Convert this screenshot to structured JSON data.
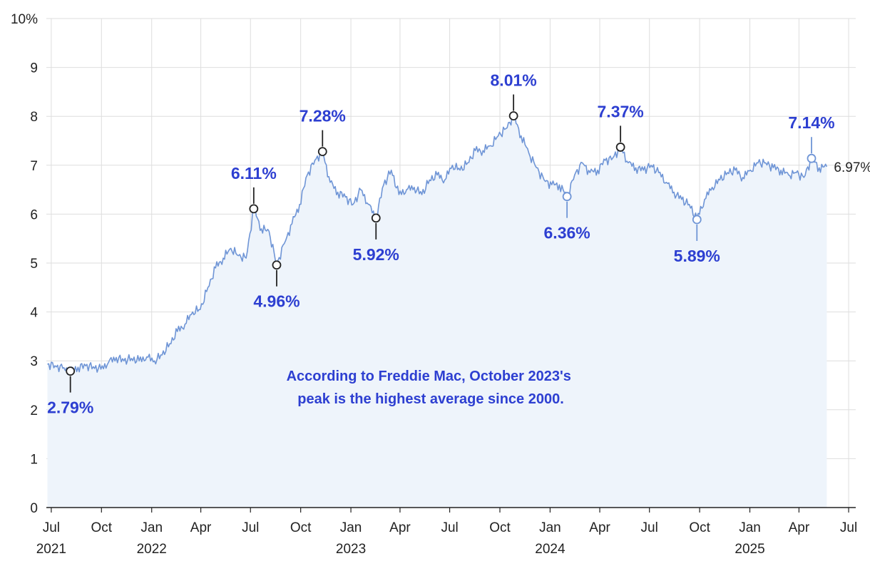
{
  "chart_data": {
    "type": "area",
    "title": "",
    "xlabel": "",
    "ylabel": "",
    "y_unit_suffix": "%",
    "ylim": [
      0,
      10
    ],
    "yticks": [
      0,
      1,
      2,
      3,
      4,
      5,
      6,
      7,
      8,
      9,
      10
    ],
    "ytick_labels": [
      "0",
      "1",
      "2",
      "3",
      "4",
      "5",
      "6",
      "7",
      "8",
      "9",
      "10%"
    ],
    "xlim": [
      "2021-06-22",
      "2025-07-14"
    ],
    "grid": true,
    "colors": {
      "line": "#6f95d6",
      "fill": "#eef4fb",
      "annotation_text": "#2d3fd1",
      "annotation_marker": "#222222"
    },
    "x_ticks": [
      {
        "date": "2021-07-01",
        "month": "Jul",
        "year": "2021"
      },
      {
        "date": "2021-10-01",
        "month": "Oct",
        "year": ""
      },
      {
        "date": "2022-01-01",
        "month": "Jan",
        "year": "2022"
      },
      {
        "date": "2022-04-01",
        "month": "Apr",
        "year": ""
      },
      {
        "date": "2022-07-01",
        "month": "Jul",
        "year": ""
      },
      {
        "date": "2022-10-01",
        "month": "Oct",
        "year": ""
      },
      {
        "date": "2023-01-01",
        "month": "Jan",
        "year": "2023"
      },
      {
        "date": "2023-04-01",
        "month": "Apr",
        "year": ""
      },
      {
        "date": "2023-07-01",
        "month": "Jul",
        "year": ""
      },
      {
        "date": "2023-10-01",
        "month": "Oct",
        "year": ""
      },
      {
        "date": "2024-01-01",
        "month": "Jan",
        "year": "2024"
      },
      {
        "date": "2024-04-01",
        "month": "Apr",
        "year": ""
      },
      {
        "date": "2024-07-01",
        "month": "Jul",
        "year": ""
      },
      {
        "date": "2024-10-01",
        "month": "Oct",
        "year": ""
      },
      {
        "date": "2025-01-01",
        "month": "Jan",
        "year": "2025"
      },
      {
        "date": "2025-04-01",
        "month": "Apr",
        "year": ""
      },
      {
        "date": "2025-07-01",
        "month": "Jul",
        "year": ""
      }
    ],
    "series": [
      {
        "points": [
          [
            "2021-06-24",
            2.93
          ],
          [
            "2021-07-08",
            2.9
          ],
          [
            "2021-07-22",
            2.85
          ],
          [
            "2021-08-05",
            2.79
          ],
          [
            "2021-08-19",
            2.87
          ],
          [
            "2021-09-02",
            2.9
          ],
          [
            "2021-09-16",
            2.88
          ],
          [
            "2021-09-30",
            2.83
          ],
          [
            "2021-10-14",
            2.97
          ],
          [
            "2021-10-28",
            3.07
          ],
          [
            "2021-11-11",
            3.0
          ],
          [
            "2021-11-25",
            3.05
          ],
          [
            "2021-12-09",
            3.0
          ],
          [
            "2021-12-23",
            3.08
          ],
          [
            "2022-01-06",
            3.0
          ],
          [
            "2022-01-20",
            3.12
          ],
          [
            "2022-02-03",
            3.35
          ],
          [
            "2022-02-17",
            3.6
          ],
          [
            "2022-03-03",
            3.75
          ],
          [
            "2022-03-17",
            4.0
          ],
          [
            "2022-03-31",
            4.05
          ],
          [
            "2022-04-14",
            4.5
          ],
          [
            "2022-04-28",
            4.9
          ],
          [
            "2022-05-12",
            5.1
          ],
          [
            "2022-05-26",
            5.3
          ],
          [
            "2022-06-09",
            5.15
          ],
          [
            "2022-06-23",
            5.1
          ],
          [
            "2022-07-07",
            6.11
          ],
          [
            "2022-07-21",
            5.7
          ],
          [
            "2022-08-04",
            5.65
          ],
          [
            "2022-08-18",
            4.96
          ],
          [
            "2022-09-01",
            5.4
          ],
          [
            "2022-09-15",
            5.8
          ],
          [
            "2022-09-29",
            6.2
          ],
          [
            "2022-10-13",
            6.8
          ],
          [
            "2022-10-27",
            7.1
          ],
          [
            "2022-11-10",
            7.28
          ],
          [
            "2022-11-24",
            6.65
          ],
          [
            "2022-12-08",
            6.45
          ],
          [
            "2022-12-22",
            6.35
          ],
          [
            "2023-01-05",
            6.2
          ],
          [
            "2023-01-19",
            6.5
          ],
          [
            "2023-02-02",
            6.2
          ],
          [
            "2023-02-16",
            5.92
          ],
          [
            "2023-03-02",
            6.6
          ],
          [
            "2023-03-16",
            6.9
          ],
          [
            "2023-03-30",
            6.4
          ],
          [
            "2023-04-13",
            6.5
          ],
          [
            "2023-04-27",
            6.55
          ],
          [
            "2023-05-11",
            6.4
          ],
          [
            "2023-05-25",
            6.7
          ],
          [
            "2023-06-08",
            6.8
          ],
          [
            "2023-06-22",
            6.7
          ],
          [
            "2023-07-06",
            7.0
          ],
          [
            "2023-07-20",
            6.9
          ],
          [
            "2023-08-03",
            7.05
          ],
          [
            "2023-08-17",
            7.3
          ],
          [
            "2023-08-31",
            7.3
          ],
          [
            "2023-09-14",
            7.4
          ],
          [
            "2023-09-28",
            7.6
          ],
          [
            "2023-10-12",
            7.75
          ],
          [
            "2023-10-26",
            8.01
          ],
          [
            "2023-11-09",
            7.6
          ],
          [
            "2023-11-23",
            7.25
          ],
          [
            "2023-12-07",
            6.95
          ],
          [
            "2023-12-21",
            6.7
          ],
          [
            "2024-01-04",
            6.6
          ],
          [
            "2024-01-18",
            6.6
          ],
          [
            "2024-02-01",
            6.36
          ],
          [
            "2024-02-15",
            6.8
          ],
          [
            "2024-02-29",
            7.05
          ],
          [
            "2024-03-14",
            6.85
          ],
          [
            "2024-03-28",
            6.9
          ],
          [
            "2024-04-11",
            7.1
          ],
          [
            "2024-04-25",
            7.15
          ],
          [
            "2024-05-09",
            7.37
          ],
          [
            "2024-05-23",
            7.05
          ],
          [
            "2024-06-06",
            6.95
          ],
          [
            "2024-06-20",
            6.9
          ],
          [
            "2024-07-04",
            7.0
          ],
          [
            "2024-07-18",
            6.85
          ],
          [
            "2024-08-01",
            6.65
          ],
          [
            "2024-08-15",
            6.45
          ],
          [
            "2024-08-29",
            6.3
          ],
          [
            "2024-09-12",
            6.2
          ],
          [
            "2024-09-26",
            5.89
          ],
          [
            "2024-10-10",
            6.3
          ],
          [
            "2024-10-24",
            6.55
          ],
          [
            "2024-11-07",
            6.7
          ],
          [
            "2024-11-21",
            6.85
          ],
          [
            "2024-12-05",
            6.9
          ],
          [
            "2024-12-19",
            6.75
          ],
          [
            "2025-01-02",
            6.9
          ],
          [
            "2025-01-16",
            7.05
          ],
          [
            "2025-01-30",
            7.05
          ],
          [
            "2025-02-13",
            6.95
          ],
          [
            "2025-02-27",
            6.9
          ],
          [
            "2025-03-13",
            6.8
          ],
          [
            "2025-03-27",
            6.85
          ],
          [
            "2025-04-10",
            6.75
          ],
          [
            "2025-04-24",
            7.14
          ],
          [
            "2025-05-08",
            6.95
          ],
          [
            "2025-05-22",
            6.97
          ]
        ]
      }
    ],
    "annotations": [
      {
        "date": "2021-08-05",
        "value": 2.79,
        "label": "2.79%",
        "position": "below",
        "style": "dark"
      },
      {
        "date": "2022-07-07",
        "value": 6.11,
        "label": "6.11%",
        "position": "above",
        "style": "dark"
      },
      {
        "date": "2022-08-18",
        "value": 4.96,
        "label": "4.96%",
        "position": "below",
        "style": "dark"
      },
      {
        "date": "2022-11-10",
        "value": 7.28,
        "label": "7.28%",
        "position": "above",
        "style": "dark"
      },
      {
        "date": "2023-02-16",
        "value": 5.92,
        "label": "5.92%",
        "position": "below",
        "style": "dark"
      },
      {
        "date": "2023-10-26",
        "value": 8.01,
        "label": "8.01%",
        "position": "above",
        "style": "dark"
      },
      {
        "date": "2024-02-01",
        "value": 6.36,
        "label": "6.36%",
        "position": "below",
        "style": "light"
      },
      {
        "date": "2024-05-09",
        "value": 7.37,
        "label": "7.37%",
        "position": "above",
        "style": "dark"
      },
      {
        "date": "2024-09-26",
        "value": 5.89,
        "label": "5.89%",
        "position": "below",
        "style": "light"
      },
      {
        "date": "2025-04-24",
        "value": 7.14,
        "label": "7.14%",
        "position": "above",
        "style": "light"
      }
    ],
    "end_label": "6.97%",
    "note": [
      "According to Freddie Mac, October 2023's",
      "peak is the highest average since 2000."
    ]
  }
}
